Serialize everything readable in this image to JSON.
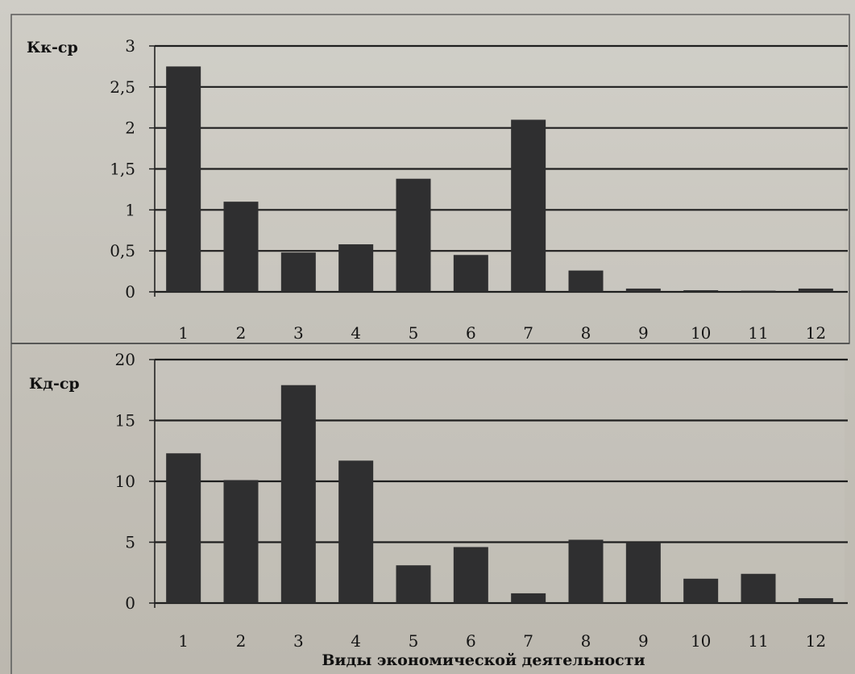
{
  "xlabel": "Виды экономической деятельности",
  "chart_data": [
    {
      "type": "bar",
      "ylabel": "Кк-ср",
      "categories": [
        "1",
        "2",
        "3",
        "4",
        "5",
        "6",
        "7",
        "8",
        "9",
        "10",
        "11",
        "12"
      ],
      "values": [
        2.75,
        1.1,
        0.48,
        0.58,
        1.38,
        0.45,
        2.1,
        0.26,
        0.04,
        0.02,
        0.01,
        0.04
      ],
      "ylim": [
        0,
        3
      ],
      "yticks": [
        "0",
        "0,5",
        "1",
        "1,5",
        "2",
        "2,5",
        "3"
      ],
      "ytick_values": [
        0,
        0.5,
        1,
        1.5,
        2,
        2.5,
        3
      ],
      "grid": true
    },
    {
      "type": "bar",
      "ylabel": "Кд-ср",
      "categories": [
        "1",
        "2",
        "3",
        "4",
        "5",
        "6",
        "7",
        "8",
        "9",
        "10",
        "11",
        "12"
      ],
      "values": [
        12.3,
        10.1,
        17.9,
        11.7,
        3.1,
        4.6,
        0.8,
        5.2,
        5.0,
        2.0,
        2.4,
        0.4
      ],
      "ylim": [
        0,
        20
      ],
      "yticks": [
        "0",
        "5",
        "10",
        "15",
        "20"
      ],
      "ytick_values": [
        0,
        5,
        10,
        15,
        20
      ],
      "grid": true
    }
  ]
}
